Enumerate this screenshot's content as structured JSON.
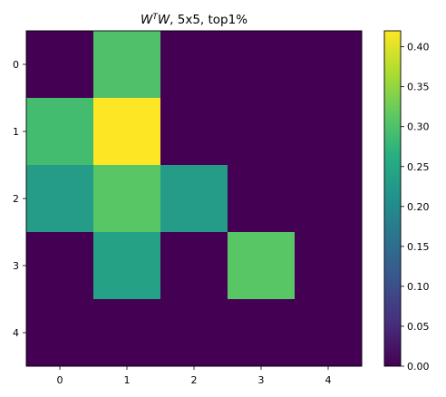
{
  "chart_data": {
    "type": "heatmap",
    "title": "W^T W, 5x5, top1%",
    "title_parts": {
      "w1": "W",
      "sup": "T",
      "w2": "W",
      "rest": ", 5x5, top1%"
    },
    "xlabel": "",
    "ylabel": "",
    "x_ticks": [
      "0",
      "1",
      "2",
      "3",
      "4"
    ],
    "y_ticks": [
      "0",
      "1",
      "2",
      "3",
      "4"
    ],
    "values": [
      [
        0.0,
        0.3,
        0.0,
        0.0,
        0.0
      ],
      [
        0.29,
        0.42,
        0.0,
        0.0,
        0.0
      ],
      [
        0.23,
        0.31,
        0.23,
        0.0,
        0.0
      ],
      [
        0.0,
        0.24,
        0.0,
        0.31,
        0.0
      ],
      [
        0.0,
        0.0,
        0.0,
        0.0,
        0.0
      ]
    ],
    "colormap": "viridis",
    "vmin": 0.0,
    "vmax": 0.42,
    "colorbar": {
      "ticks": [
        "0.00",
        "0.05",
        "0.10",
        "0.15",
        "0.20",
        "0.25",
        "0.30",
        "0.35",
        "0.40"
      ],
      "tick_values": [
        0.0,
        0.05,
        0.1,
        0.15,
        0.2,
        0.25,
        0.3,
        0.35,
        0.4
      ]
    },
    "grid": false
  }
}
